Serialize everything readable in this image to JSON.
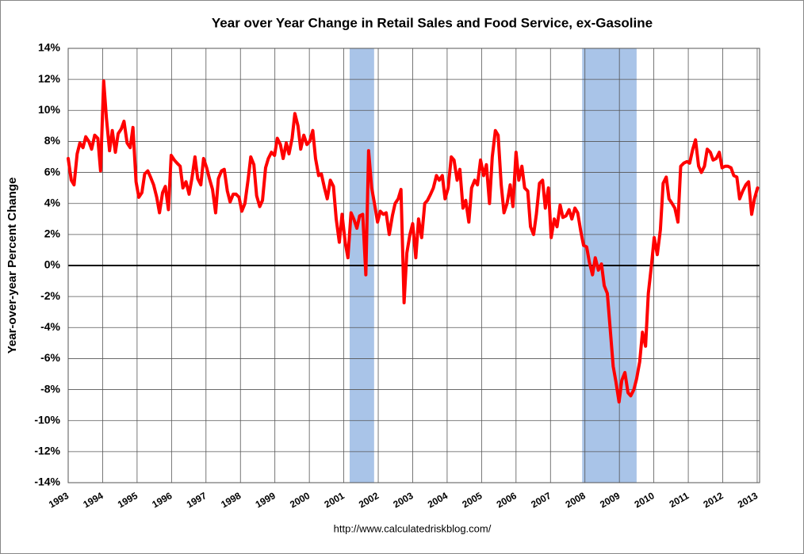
{
  "chart_data": {
    "type": "line",
    "title": "Year over Year Change in Retail Sales and Food Service, ex-Gasoline",
    "y_label": "Year-over-year Percent Change",
    "source": "http://www.calculatedriskblog.com/",
    "color": "#ff0000",
    "recession_color": "#a9c4e8",
    "recessions": [
      [
        2001.17,
        2001.88
      ],
      [
        2007.92,
        2009.5
      ]
    ],
    "grid": true,
    "xlim": [
      1993,
      2013.07
    ],
    "xticks": [
      1993,
      1994,
      1995,
      1996,
      1997,
      1998,
      1999,
      2000,
      2001,
      2002,
      2003,
      2004,
      2005,
      2006,
      2007,
      2008,
      2009,
      2010,
      2011,
      2012,
      2013
    ],
    "ylim": [
      -14,
      14
    ],
    "yticks": [
      {
        "value": -14,
        "label": "-14%"
      },
      {
        "value": -12,
        "label": "-12%"
      },
      {
        "value": -10,
        "label": "-10%"
      },
      {
        "value": -8,
        "label": "-8%"
      },
      {
        "value": -6,
        "label": "-6%"
      },
      {
        "value": -4,
        "label": "-4%"
      },
      {
        "value": -2,
        "label": "-2%"
      },
      {
        "value": 0,
        "label": "0%"
      },
      {
        "value": 2,
        "label": "2%"
      },
      {
        "value": 4,
        "label": "4%"
      },
      {
        "value": 6,
        "label": "6%"
      },
      {
        "value": 8,
        "label": "8%"
      },
      {
        "value": 10,
        "label": "10%"
      },
      {
        "value": 12,
        "label": "12%"
      },
      {
        "value": 14,
        "label": "14%"
      }
    ],
    "x": [
      1993.0,
      1993.09,
      1993.17,
      1993.26,
      1993.34,
      1993.43,
      1993.51,
      1993.6,
      1993.68,
      1993.77,
      1993.86,
      1993.94,
      1994.03,
      1994.11,
      1994.2,
      1994.28,
      1994.37,
      1994.45,
      1994.54,
      1994.62,
      1994.71,
      1994.8,
      1994.88,
      1994.97,
      1995.05,
      1995.14,
      1995.22,
      1995.31,
      1995.39,
      1995.48,
      1995.57,
      1995.65,
      1995.74,
      1995.82,
      1995.91,
      1995.99,
      1996.08,
      1996.16,
      1996.25,
      1996.33,
      1996.42,
      1996.51,
      1996.59,
      1996.68,
      1996.76,
      1996.85,
      1996.93,
      1997.02,
      1997.1,
      1997.19,
      1997.28,
      1997.36,
      1997.45,
      1997.53,
      1997.62,
      1997.7,
      1997.79,
      1997.87,
      1997.96,
      1998.04,
      1998.13,
      1998.22,
      1998.3,
      1998.39,
      1998.47,
      1998.56,
      1998.64,
      1998.73,
      1998.81,
      1998.9,
      1998.99,
      1999.07,
      1999.16,
      1999.24,
      1999.33,
      1999.41,
      1999.5,
      1999.58,
      1999.67,
      1999.75,
      1999.84,
      1999.93,
      2000.01,
      2000.1,
      2000.18,
      2000.27,
      2000.35,
      2000.44,
      2000.52,
      2000.61,
      2000.7,
      2000.78,
      2000.87,
      2000.95,
      2001.04,
      2001.12,
      2001.21,
      2001.29,
      2001.38,
      2001.46,
      2001.55,
      2001.64,
      2001.72,
      2001.81,
      2001.89,
      2001.98,
      2002.06,
      2002.15,
      2002.23,
      2002.32,
      2002.41,
      2002.49,
      2002.58,
      2002.66,
      2002.75,
      2002.83,
      2002.92,
      2003.0,
      2003.09,
      2003.17,
      2003.26,
      2003.35,
      2003.43,
      2003.52,
      2003.6,
      2003.69,
      2003.77,
      2003.86,
      2003.94,
      2004.03,
      2004.12,
      2004.2,
      2004.29,
      2004.37,
      2004.46,
      2004.54,
      2004.63,
      2004.71,
      2004.8,
      2004.88,
      2004.97,
      2005.06,
      2005.14,
      2005.23,
      2005.31,
      2005.4,
      2005.48,
      2005.57,
      2005.65,
      2005.74,
      2005.83,
      2005.91,
      2006.0,
      2006.08,
      2006.17,
      2006.25,
      2006.34,
      2006.42,
      2006.51,
      2006.59,
      2006.68,
      2006.77,
      2006.85,
      2006.94,
      2007.02,
      2007.11,
      2007.19,
      2007.28,
      2007.36,
      2007.45,
      2007.54,
      2007.62,
      2007.71,
      2007.79,
      2007.88,
      2007.96,
      2008.05,
      2008.13,
      2008.22,
      2008.3,
      2008.39,
      2008.48,
      2008.56,
      2008.65,
      2008.73,
      2008.82,
      2008.9,
      2008.99,
      2009.07,
      2009.16,
      2009.25,
      2009.33,
      2009.42,
      2009.5,
      2009.59,
      2009.67,
      2009.76,
      2009.84,
      2009.93,
      2010.01,
      2010.1,
      2010.19,
      2010.27,
      2010.36,
      2010.44,
      2010.53,
      2010.61,
      2010.7,
      2010.78,
      2010.87,
      2010.96,
      2011.04,
      2011.13,
      2011.21,
      2011.3,
      2011.38,
      2011.47,
      2011.55,
      2011.64,
      2011.72,
      2011.81,
      2011.9,
      2011.98,
      2012.07,
      2012.15,
      2012.24,
      2012.32,
      2012.41,
      2012.49,
      2012.58,
      2012.67,
      2012.75,
      2012.84,
      2012.92,
      2013.01
    ],
    "values": [
      6.9,
      5.5,
      5.2,
      7.2,
      7.9,
      7.6,
      8.3,
      8.0,
      7.5,
      8.4,
      8.2,
      6.1,
      11.9,
      9.5,
      7.4,
      8.7,
      7.3,
      8.5,
      8.8,
      9.3,
      7.9,
      7.6,
      8.9,
      5.4,
      4.4,
      4.7,
      5.9,
      6.1,
      5.7,
      5.2,
      4.4,
      3.4,
      4.7,
      5.1,
      3.6,
      7.1,
      6.8,
      6.6,
      6.4,
      5.0,
      5.4,
      4.6,
      5.6,
      7.0,
      5.6,
      5.2,
      6.9,
      6.3,
      5.6,
      4.9,
      3.4,
      5.6,
      6.1,
      6.2,
      4.8,
      4.1,
      4.6,
      4.6,
      4.4,
      3.5,
      4.0,
      5.5,
      7.0,
      6.5,
      4.5,
      3.8,
      4.2,
      6.3,
      6.9,
      7.3,
      7.1,
      8.2,
      7.8,
      6.9,
      7.9,
      7.2,
      8.2,
      9.8,
      9.0,
      7.5,
      8.4,
      7.8,
      8.0,
      8.7,
      6.9,
      5.8,
      5.9,
      5.0,
      4.3,
      5.5,
      5.1,
      3.0,
      1.5,
      3.3,
      1.5,
      0.5,
      3.4,
      3.0,
      2.4,
      3.2,
      3.3,
      -0.6,
      7.4,
      5.0,
      4.0,
      2.8,
      3.5,
      3.3,
      3.4,
      2.0,
      3.2,
      4.0,
      4.3,
      4.9,
      -2.4,
      0.8,
      2.0,
      2.7,
      0.5,
      3.0,
      1.8,
      4.0,
      4.2,
      4.6,
      5.0,
      5.8,
      5.5,
      5.8,
      4.3,
      5.0,
      7.0,
      6.8,
      5.5,
      6.2,
      3.7,
      4.2,
      2.8,
      5.0,
      5.5,
      5.2,
      6.8,
      5.8,
      6.5,
      4.0,
      7.0,
      8.7,
      8.4,
      5.2,
      3.4,
      4.0,
      5.2,
      3.8,
      7.3,
      5.5,
      6.4,
      5.0,
      4.8,
      2.5,
      2.0,
      3.3,
      5.3,
      5.5,
      3.7,
      5.0,
      1.8,
      3.0,
      2.5,
      3.9,
      3.1,
      3.2,
      3.6,
      3.0,
      3.7,
      3.4,
      2.2,
      1.3,
      1.2,
      0.2,
      -0.6,
      0.5,
      -0.3,
      0.1,
      -1.3,
      -1.8,
      -4.0,
      -6.5,
      -7.5,
      -8.8,
      -7.4,
      -6.9,
      -8.2,
      -8.4,
      -8.0,
      -7.3,
      -6.2,
      -4.3,
      -5.2,
      -1.8,
      0.0,
      1.8,
      0.7,
      2.3,
      5.3,
      5.7,
      4.3,
      4.0,
      3.7,
      2.8,
      6.4,
      6.6,
      6.7,
      6.6,
      7.5,
      8.1,
      6.4,
      6.0,
      6.4,
      7.5,
      7.3,
      6.8,
      6.9,
      7.3,
      6.3,
      6.4,
      6.4,
      6.3,
      5.8,
      5.7,
      4.3,
      4.8,
      5.2,
      5.4,
      3.3,
      4.3,
      5.0
    ]
  }
}
